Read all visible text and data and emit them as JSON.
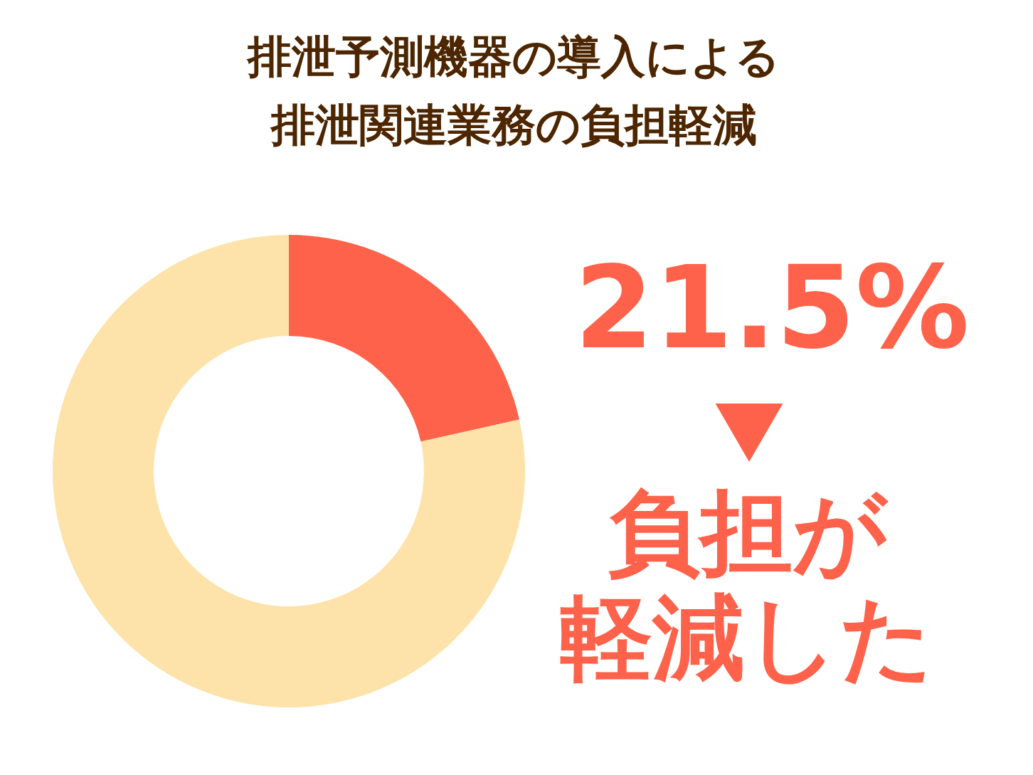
{
  "chart_data": {
    "type": "donut",
    "title": "排泄予測機器の導入による排泄関連業務の負担軽減",
    "categories": [
      "負担が軽減した",
      null
    ],
    "values": [
      21.5,
      78.5
    ],
    "colors": [
      "#ff624a",
      "#fde3aa"
    ],
    "value_labels": [
      "21.5%",
      null
    ],
    "legend": "right"
  }
}
